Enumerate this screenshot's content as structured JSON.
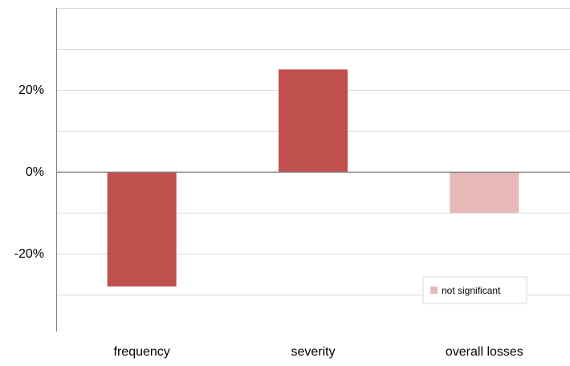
{
  "chart_data": {
    "type": "bar",
    "categories": [
      "frequency",
      "severity",
      "overall losses"
    ],
    "values": [
      -28,
      25,
      -10
    ],
    "significant": [
      true,
      true,
      false
    ],
    "y_ticks": [
      -20,
      0,
      20
    ],
    "y_tick_labels": [
      "-20%",
      "0%",
      "20%"
    ],
    "ylim": [
      -39,
      40
    ],
    "gridline_step": 10,
    "grid": true,
    "title": "",
    "xlabel": "",
    "ylabel": "",
    "legend": {
      "position": "bottom-right",
      "entries": [
        {
          "label": "not significant",
          "color": "#e6b9b8"
        }
      ]
    },
    "colors": {
      "significant": "#c0504d",
      "not_significant": "#e6b9b8",
      "gridline": "#d9d9d9",
      "zero_line": "#808080",
      "axis": "#808080"
    }
  }
}
